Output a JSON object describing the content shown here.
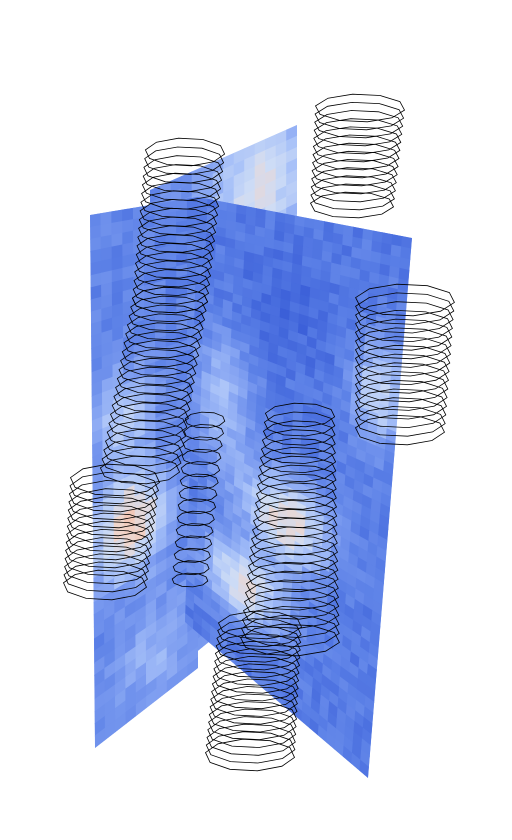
{
  "scene": {
    "kind": "3d-volume-render",
    "background_color": "#ffffff",
    "slice_colormap": [
      "#3b5fd8",
      "#5a7fe6",
      "#7c9cf0",
      "#a5bff8",
      "#cddcf6",
      "#f0d6cc",
      "#f6b49c"
    ],
    "contour_stroke_color": "#000000"
  }
}
